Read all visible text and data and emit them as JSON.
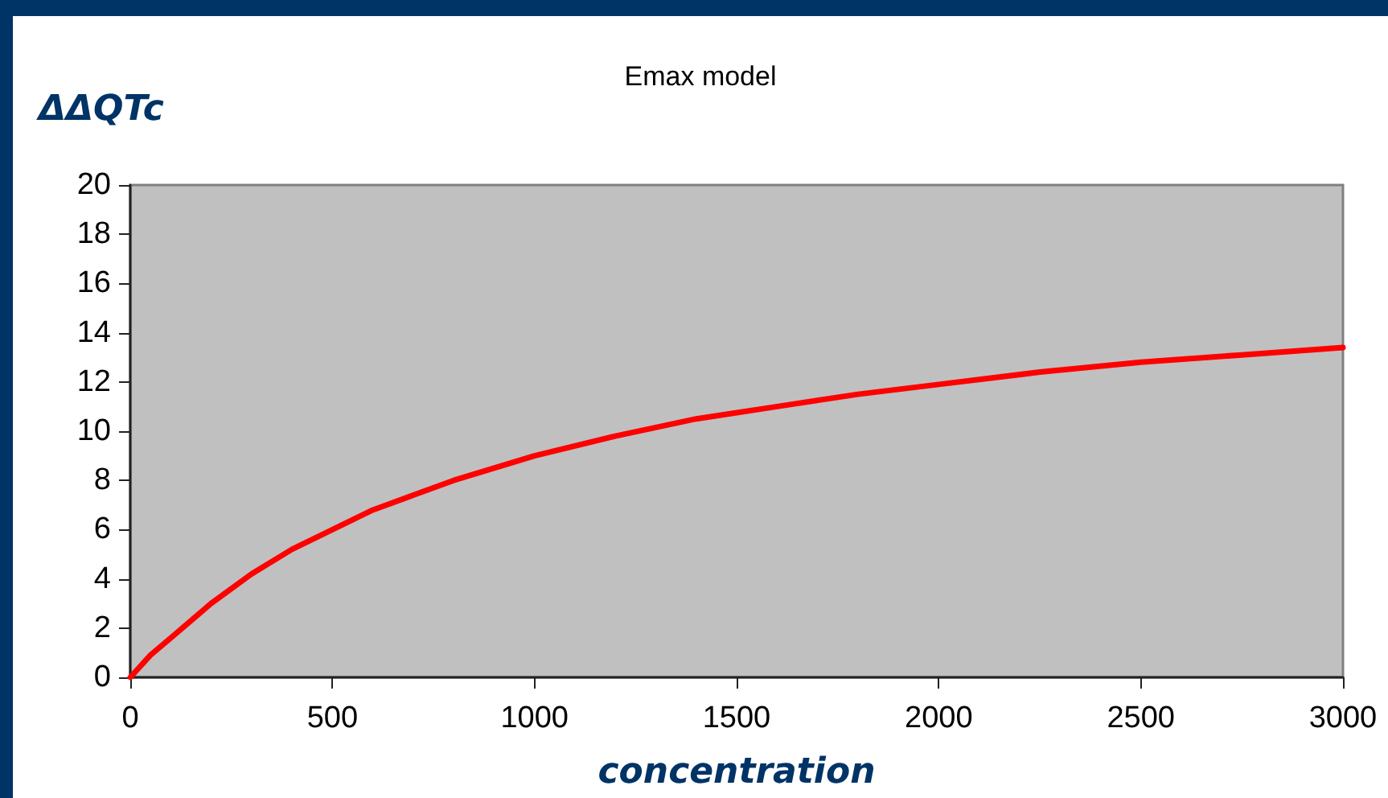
{
  "chart_data": {
    "type": "line",
    "title": "Emax model",
    "xlabel": "concentration",
    "ylabel": "ΔΔQTc",
    "x": [
      0,
      50,
      100,
      200,
      300,
      400,
      500,
      600,
      700,
      800,
      900,
      1000,
      1200,
      1400,
      1600,
      1800,
      2000,
      2250,
      2500,
      2750,
      3000
    ],
    "series": [
      {
        "color": "#ff0000",
        "values": [
          0,
          0.9,
          1.6,
          3.0,
          4.2,
          5.2,
          6.0,
          6.8,
          7.4,
          8.0,
          8.5,
          9.0,
          9.8,
          10.5,
          11.0,
          11.5,
          11.9,
          12.4,
          12.8,
          13.1,
          13.4
        ]
      }
    ],
    "xlim": [
      0,
      3000
    ],
    "xticks": [
      0,
      500,
      1000,
      1500,
      2000,
      2500,
      3000
    ],
    "ylim": [
      0,
      20
    ],
    "yticks": [
      0,
      2,
      4,
      6,
      8,
      10,
      12,
      14,
      16,
      18,
      20
    ],
    "grid": false,
    "marker": "none",
    "line_style": "solid"
  }
}
